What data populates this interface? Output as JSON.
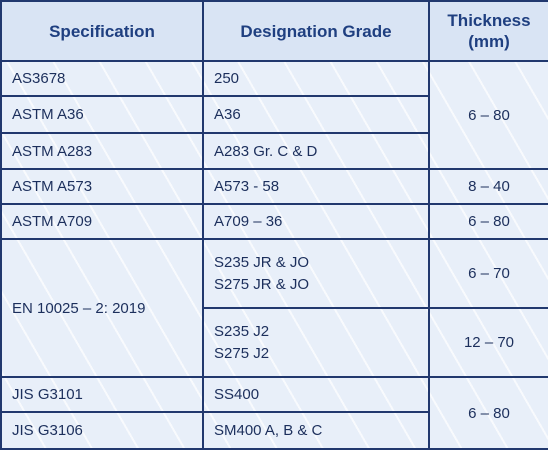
{
  "table": {
    "header": [
      "Specification",
      "Designation Grade",
      "Thickness (mm)"
    ],
    "rows": [
      [
        "AS3678",
        "250",
        "6 – 80"
      ],
      [
        "ASTM A36",
        "A36"
      ],
      [
        "ASTM A283",
        "A283 Gr. C & D"
      ],
      [
        "ASTM A573",
        "A573 - 58",
        "8 – 40"
      ],
      [
        "ASTM A709",
        "A709 – 36",
        "6 – 80"
      ],
      [
        "EN 10025 – 2: 2019",
        [
          "S235 JR & JO",
          "S275 JR & JO"
        ],
        "6 – 70"
      ],
      [
        [
          "S235 J2",
          "S275 J2"
        ],
        "12 – 70"
      ],
      [
        "JIS G3101",
        "SS400",
        "6 – 80"
      ],
      [
        "JIS G3106",
        "SM400 A, B & C"
      ]
    ]
  }
}
